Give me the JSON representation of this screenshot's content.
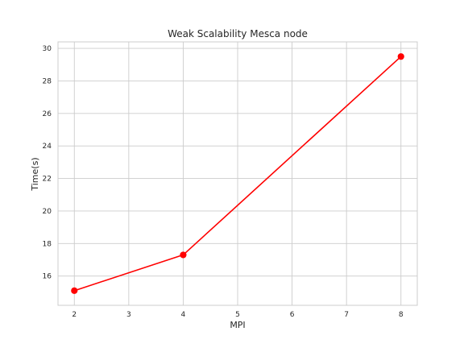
{
  "chart_data": {
    "type": "line",
    "title": "Weak Scalability Mesca node",
    "xlabel": "MPI",
    "ylabel": "Time(s)",
    "x": [
      2,
      4,
      8
    ],
    "series": [
      {
        "name": "Time",
        "values": [
          15.1,
          17.3,
          29.5
        ],
        "color": "#ff0000",
        "marker": "circle"
      }
    ],
    "xlim": [
      1.7,
      8.3
    ],
    "ylim": [
      14.2,
      30.4
    ],
    "xticks": [
      2,
      3,
      4,
      5,
      6,
      7,
      8
    ],
    "yticks": [
      16,
      18,
      20,
      22,
      24,
      26,
      28,
      30
    ],
    "grid": true,
    "legend": false
  }
}
